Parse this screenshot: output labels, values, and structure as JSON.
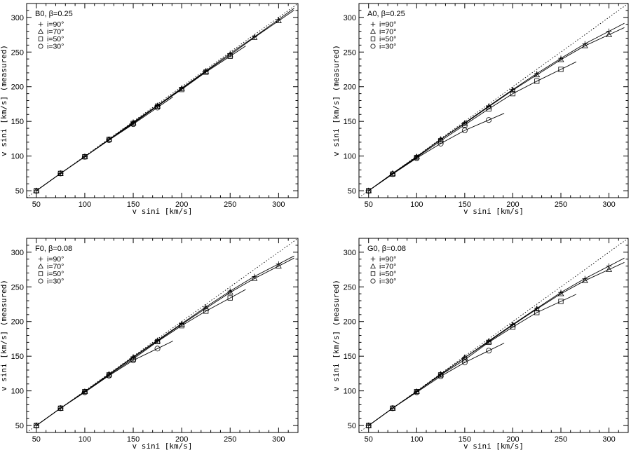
{
  "chart_data": [
    {
      "type": "scatter",
      "title": "B0, β=0.25",
      "xlabel": "v sini [km/s]",
      "ylabel": "v sini [km/s] (measured)",
      "xlim": [
        40,
        320
      ],
      "ylim": [
        40,
        320
      ],
      "xticks": [
        50,
        100,
        150,
        200,
        250,
        300
      ],
      "yticks": [
        50,
        100,
        150,
        200,
        250,
        300
      ],
      "reference": "dotted y = x",
      "legend_position": "top-left",
      "series": [
        {
          "name": "i=90°",
          "marker": "plus",
          "x": [
            50,
            75,
            100,
            125,
            150,
            175,
            200,
            225,
            250,
            275,
            300
          ],
          "y": [
            50,
            75,
            99,
            124,
            149,
            173,
            198,
            223,
            248,
            272,
            297
          ]
        },
        {
          "name": "i=70°",
          "marker": "triangle",
          "x": [
            50,
            75,
            100,
            125,
            150,
            175,
            200,
            225,
            250,
            275,
            300
          ],
          "y": [
            50,
            75,
            99,
            124,
            148,
            172,
            197,
            222,
            246,
            271,
            295
          ]
        },
        {
          "name": "i=50°",
          "marker": "square",
          "x": [
            50,
            75,
            100,
            125,
            150,
            175,
            200,
            225,
            250
          ],
          "y": [
            50,
            75,
            99,
            124,
            147,
            172,
            196,
            221,
            244
          ]
        },
        {
          "name": "i=30°",
          "marker": "circle",
          "x": [
            50,
            75,
            100,
            125,
            150,
            175
          ],
          "y": [
            50,
            75,
            99,
            123,
            146,
            170
          ]
        }
      ]
    },
    {
      "type": "scatter",
      "title": "A0, β=0.25",
      "xlabel": "v sini [km/s]",
      "ylabel": "v sini [km/s] (measured)",
      "xlim": [
        40,
        320
      ],
      "ylim": [
        40,
        320
      ],
      "xticks": [
        50,
        100,
        150,
        200,
        250,
        300
      ],
      "yticks": [
        50,
        100,
        150,
        200,
        250,
        300
      ],
      "reference": "dotted y = x",
      "legend_position": "top-left",
      "series": [
        {
          "name": "i=90°",
          "marker": "plus",
          "x": [
            50,
            75,
            100,
            125,
            150,
            175,
            200,
            225,
            250,
            275,
            300
          ],
          "y": [
            50,
            75,
            99,
            124,
            148,
            172,
            196,
            219,
            241,
            262,
            280
          ]
        },
        {
          "name": "i=70°",
          "marker": "triangle",
          "x": [
            50,
            75,
            100,
            125,
            150,
            175,
            200,
            225,
            250,
            275,
            300
          ],
          "y": [
            50,
            75,
            99,
            124,
            147,
            171,
            195,
            217,
            239,
            259,
            275
          ]
        },
        {
          "name": "i=50°",
          "marker": "square",
          "x": [
            50,
            75,
            100,
            125,
            150,
            175,
            200,
            225,
            250
          ],
          "y": [
            50,
            74,
            98,
            122,
            145,
            168,
            190,
            208,
            225
          ]
        },
        {
          "name": "i=30°",
          "marker": "circle",
          "x": [
            50,
            75,
            100,
            125,
            150,
            175
          ],
          "y": [
            50,
            74,
            97,
            118,
            137,
            152
          ]
        }
      ]
    },
    {
      "type": "scatter",
      "title": "F0, β=0.08",
      "xlabel": "v sini [km/s]",
      "ylabel": "v sini [km/s] (measured)",
      "xlim": [
        40,
        320
      ],
      "ylim": [
        40,
        320
      ],
      "xticks": [
        50,
        100,
        150,
        200,
        250,
        300
      ],
      "yticks": [
        50,
        100,
        150,
        200,
        250,
        300
      ],
      "reference": "dotted y = x",
      "legend_position": "top-left",
      "series": [
        {
          "name": "i=90°",
          "marker": "plus",
          "x": [
            50,
            75,
            100,
            125,
            150,
            175,
            200,
            225,
            250,
            275,
            300
          ],
          "y": [
            50,
            75,
            99,
            124,
            149,
            173,
            197,
            221,
            244,
            265,
            283
          ]
        },
        {
          "name": "i=70°",
          "marker": "triangle",
          "x": [
            50,
            75,
            100,
            125,
            150,
            175,
            200,
            225,
            250,
            275,
            300
          ],
          "y": [
            50,
            75,
            99,
            124,
            148,
            172,
            196,
            219,
            242,
            262,
            280
          ]
        },
        {
          "name": "i=50°",
          "marker": "square",
          "x": [
            50,
            75,
            100,
            125,
            150,
            175,
            200,
            225,
            250
          ],
          "y": [
            50,
            75,
            99,
            123,
            146,
            171,
            194,
            215,
            234
          ]
        },
        {
          "name": "i=30°",
          "marker": "circle",
          "x": [
            50,
            75,
            100,
            125,
            150,
            175
          ],
          "y": [
            50,
            75,
            98,
            122,
            144,
            161
          ]
        }
      ]
    },
    {
      "type": "scatter",
      "title": "G0, β=0.08",
      "xlabel": "v sini [km/s]",
      "ylabel": "v sini [km/s] (measured)",
      "xlim": [
        40,
        320
      ],
      "ylim": [
        40,
        320
      ],
      "xticks": [
        50,
        100,
        150,
        200,
        250,
        300
      ],
      "yticks": [
        50,
        100,
        150,
        200,
        250,
        300
      ],
      "reference": "dotted y = x",
      "legend_position": "top-left",
      "series": [
        {
          "name": "i=90°",
          "marker": "plus",
          "x": [
            50,
            75,
            100,
            125,
            150,
            175,
            200,
            225,
            250,
            275,
            300
          ],
          "y": [
            50,
            75,
            99,
            124,
            148,
            172,
            196,
            219,
            242,
            262,
            280
          ]
        },
        {
          "name": "i=70°",
          "marker": "triangle",
          "x": [
            50,
            75,
            100,
            125,
            150,
            175,
            200,
            225,
            250,
            275,
            300
          ],
          "y": [
            50,
            75,
            99,
            124,
            148,
            171,
            195,
            218,
            240,
            259,
            275
          ]
        },
        {
          "name": "i=50°",
          "marker": "square",
          "x": [
            50,
            75,
            100,
            125,
            150,
            175,
            200,
            225,
            250
          ],
          "y": [
            50,
            75,
            99,
            123,
            145,
            170,
            192,
            213,
            229
          ]
        },
        {
          "name": "i=30°",
          "marker": "circle",
          "x": [
            50,
            75,
            100,
            125,
            150,
            175
          ],
          "y": [
            50,
            75,
            98,
            121,
            141,
            158
          ]
        }
      ]
    }
  ]
}
